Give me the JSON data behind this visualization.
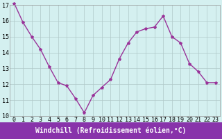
{
  "x": [
    0,
    1,
    2,
    3,
    4,
    5,
    6,
    7,
    8,
    9,
    10,
    11,
    12,
    13,
    14,
    15,
    16,
    17,
    18,
    19,
    20,
    21,
    22,
    23
  ],
  "y": [
    17.1,
    15.9,
    15.0,
    14.2,
    13.1,
    12.1,
    11.9,
    11.1,
    10.2,
    11.3,
    11.8,
    12.3,
    13.6,
    14.6,
    15.3,
    15.5,
    15.6,
    16.3,
    15.0,
    14.6,
    13.3,
    12.8,
    12.1,
    12.1
  ],
  "ylim": [
    10,
    17
  ],
  "yticks": [
    10,
    11,
    12,
    13,
    14,
    15,
    16,
    17
  ],
  "xticks": [
    0,
    1,
    2,
    3,
    4,
    5,
    6,
    7,
    8,
    9,
    10,
    11,
    12,
    13,
    14,
    15,
    16,
    17,
    18,
    19,
    20,
    21,
    22,
    23
  ],
  "line_color": "#993399",
  "marker": "*",
  "marker_size": 3,
  "bg_color": "#d4f0f0",
  "grid_color": "#b0c8c8",
  "xlabel": "Windchill (Refroidissement éolien,°C)",
  "xlabel_fontsize": 7,
  "tick_fontsize": 6,
  "line_width": 1.0,
  "label_bg_color": "#8833aa",
  "label_text_color": "#ffffff",
  "spine_color": "#999999"
}
